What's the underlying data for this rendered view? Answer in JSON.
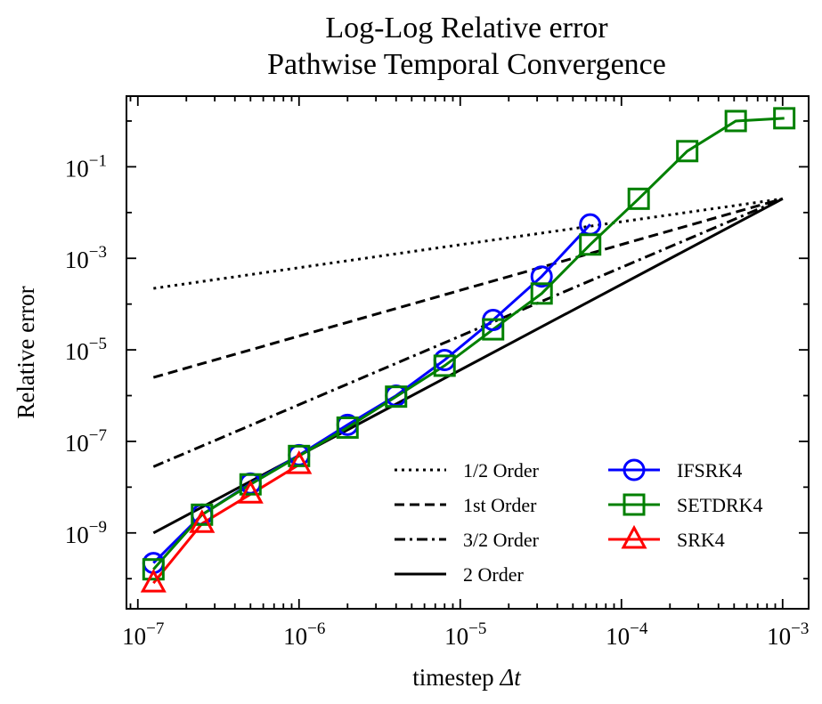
{
  "chart_data": {
    "type": "line",
    "title_lines": [
      "Log-Log Relative error",
      "Pathwise Temporal Convergence"
    ],
    "xlabel": "timestep",
    "xlabel_symbol": "Δt",
    "ylabel": "Relative error",
    "xscale": "log",
    "yscale": "log",
    "xlim": [
      8.5e-08,
      0.00145
    ],
    "ylim": [
      2.2e-11,
      3.5
    ],
    "x_major_ticks": [
      {
        "value": 1e-07,
        "base": "10",
        "exp": "−7"
      },
      {
        "value": 1e-06,
        "base": "10",
        "exp": "−6"
      },
      {
        "value": 1e-05,
        "base": "10",
        "exp": "−5"
      },
      {
        "value": 0.0001,
        "base": "10",
        "exp": "−4"
      },
      {
        "value": 0.001,
        "base": "10",
        "exp": "−3"
      }
    ],
    "y_major_ticks": [
      {
        "value": 1e-09,
        "base": "10",
        "exp": "−9"
      },
      {
        "value": 1e-07,
        "base": "10",
        "exp": "−7"
      },
      {
        "value": 1e-05,
        "base": "10",
        "exp": "−5"
      },
      {
        "value": 0.001,
        "base": "10",
        "exp": "−3"
      },
      {
        "value": 0.1,
        "base": "10",
        "exp": "−1"
      }
    ],
    "legend_position": "lower-right",
    "reference_lines": [
      {
        "name": "1/2 Order",
        "dash": "dotted",
        "color": "#000000",
        "x": [
          1.25e-07,
          0.001
        ],
        "y": [
          0.00022,
          0.02
        ]
      },
      {
        "name": "1st Order",
        "dash": "dashed",
        "color": "#000000",
        "x": [
          1.25e-07,
          0.001
        ],
        "y": [
          2.5e-06,
          0.02
        ]
      },
      {
        "name": "3/2 Order",
        "dash": "dashdot",
        "color": "#000000",
        "x": [
          1.25e-07,
          0.001
        ],
        "y": [
          2.8e-08,
          0.02
        ]
      },
      {
        "name": "2 Order",
        "dash": "solid",
        "color": "#000000",
        "x": [
          1.25e-07,
          0.001
        ],
        "y": [
          1e-09,
          0.02
        ]
      }
    ],
    "series": [
      {
        "name": "IFSRK4",
        "color": "#0000ff",
        "marker": "circle",
        "x": [
          1.25e-07,
          2.5e-07,
          5e-07,
          1e-06,
          2e-06,
          4e-06,
          8e-06,
          1.6e-05,
          3.2e-05,
          6.4e-05
        ],
        "y": [
          2.2e-10,
          2.5e-09,
          1.2e-08,
          5e-08,
          2.3e-07,
          1e-06,
          6e-06,
          4.5e-05,
          0.0004,
          0.0055
        ]
      },
      {
        "name": "SETDRK4",
        "color": "#008000",
        "marker": "square",
        "x": [
          1.25e-07,
          2.5e-07,
          5e-07,
          1e-06,
          2e-06,
          4e-06,
          8e-06,
          1.6e-05,
          3.2e-05,
          6.4e-05,
          0.000128,
          0.000256,
          0.000512,
          0.001024
        ],
        "y": [
          1.6e-10,
          2.5e-09,
          1.15e-08,
          4.8e-08,
          2e-07,
          9.5e-07,
          4.5e-06,
          2.8e-05,
          0.00017,
          0.002,
          0.02,
          0.22,
          1,
          1.15
        ]
      },
      {
        "name": "SRK4",
        "color": "#ff0000",
        "marker": "triangle",
        "x": [
          1.25e-07,
          2.5e-07,
          5e-07,
          1e-06
        ],
        "y": [
          8e-11,
          1.6e-09,
          7e-09,
          3.1e-08
        ]
      }
    ]
  }
}
